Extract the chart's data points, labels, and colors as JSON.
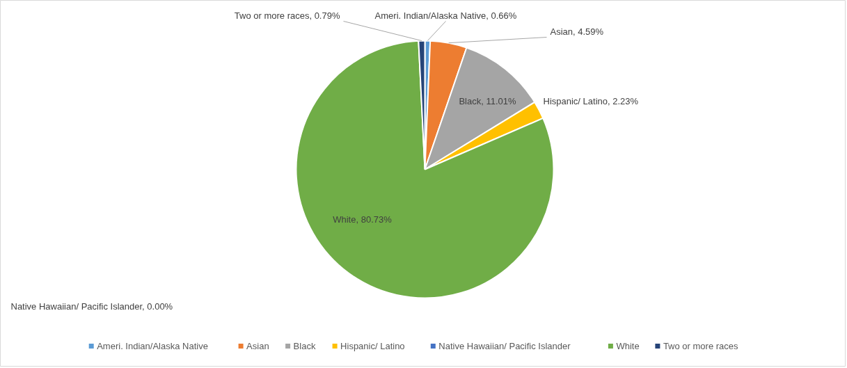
{
  "chart_data": {
    "type": "pie",
    "categories": [
      "Ameri. Indian/Alaska Native",
      "Asian",
      "Black",
      "Hispanic/ Latino",
      "Native Hawaiian/ Pacific Islander",
      "White",
      "Two or more races"
    ],
    "values": [
      0.66,
      4.59,
      11.01,
      2.23,
      0.0,
      80.73,
      0.79
    ],
    "colors": [
      "#5b9bd5",
      "#ed7d31",
      "#a5a5a5",
      "#ffc000",
      "#4472c4",
      "#70ad47",
      "#264478"
    ],
    "value_labels": [
      "Ameri. Indian/Alaska Native, 0.66%",
      "Asian, 4.59%",
      "Black, 11.01%",
      "Hispanic/ Latino, 2.23%",
      "Native Hawaiian/ Pacific Islander, 0.00%",
      "White, 80.73%",
      "Two or more races, 0.79%"
    ],
    "legend": "bottom"
  }
}
